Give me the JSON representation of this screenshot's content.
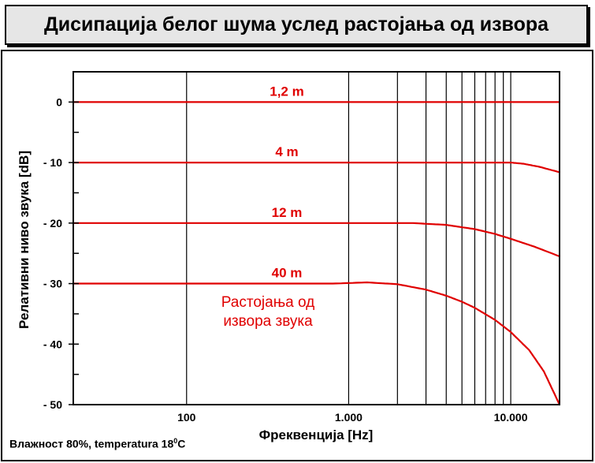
{
  "title": "Дисипација белог шума услед растојања од извора",
  "footnote": {
    "prefix": "Влажност 80%,  temperatura 18",
    "sup": "0",
    "suffix": "C"
  },
  "annotation": [
    "Растојања од",
    "извора звука"
  ],
  "colors": {
    "series": "#e00000",
    "axis": "#000000",
    "title_bg": "#e6e6e6"
  },
  "chart_data": {
    "type": "line",
    "xscale": "log",
    "xlim": [
      20,
      20000
    ],
    "ylim": [
      -50,
      5
    ],
    "xlabel": "Фреквенција [Hz]",
    "ylabel": "Релативни ниво звука [dB]",
    "xticks": [
      {
        "value": 100,
        "label": "100"
      },
      {
        "value": 1000,
        "label": "1.000"
      },
      {
        "value": 10000,
        "label": "10.000"
      }
    ],
    "yticks": [
      0,
      -10,
      -20,
      -30,
      -40,
      -50
    ],
    "ytick_labels": [
      "0",
      "- 10",
      "- 20",
      "- 30",
      "- 40",
      "- 50"
    ],
    "grid": "vertical",
    "grid_x": [
      100,
      1000,
      2000,
      3000,
      4000,
      5000,
      6000,
      7000,
      8000,
      9000,
      10000
    ],
    "series": [
      {
        "name": "1,2 m",
        "points": [
          [
            20,
            0
          ],
          [
            20000,
            0
          ]
        ]
      },
      {
        "name": "4 m",
        "points": [
          [
            20,
            -10
          ],
          [
            10000,
            -10
          ],
          [
            12000,
            -10.2
          ],
          [
            15000,
            -10.7
          ],
          [
            20000,
            -11.6
          ]
        ]
      },
      {
        "name": "12 m",
        "points": [
          [
            20,
            -20
          ],
          [
            2500,
            -20
          ],
          [
            4000,
            -20.3
          ],
          [
            6000,
            -21.0
          ],
          [
            8000,
            -21.8
          ],
          [
            10000,
            -22.6
          ],
          [
            14000,
            -23.9
          ],
          [
            20000,
            -25.5
          ]
        ]
      },
      {
        "name": "40 m",
        "points": [
          [
            20,
            -30
          ],
          [
            800,
            -30
          ],
          [
            1300,
            -29.8
          ],
          [
            2000,
            -30.1
          ],
          [
            3000,
            -31.0
          ],
          [
            4000,
            -32.0
          ],
          [
            5000,
            -33.0
          ],
          [
            6000,
            -34.0
          ],
          [
            8000,
            -36.0
          ],
          [
            10000,
            -38.0
          ],
          [
            13000,
            -41.0
          ],
          [
            16000,
            -44.5
          ],
          [
            20000,
            -50
          ]
        ]
      }
    ]
  }
}
